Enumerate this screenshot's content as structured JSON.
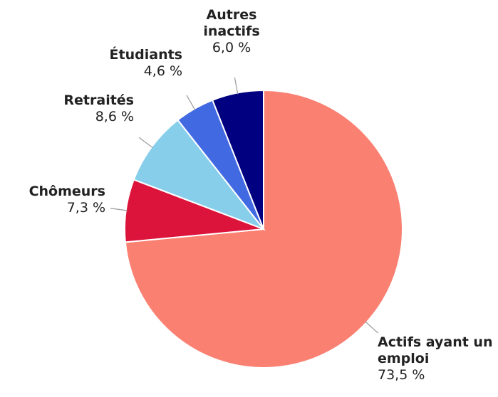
{
  "chart_data": {
    "type": "pie",
    "categories": [
      "Actifs ayant un emploi",
      "Chômeurs",
      "Retraités",
      "Étudiants",
      "Autres inactifs"
    ],
    "values": [
      73.5,
      7.3,
      8.6,
      4.6,
      6.0
    ],
    "value_labels": [
      "73,5 %",
      "7,3 %",
      "8,6 %",
      "4,6 %",
      "6,0 %"
    ],
    "colors": [
      "#fa8072",
      "#dc143c",
      "#87ceeb",
      "#4169e1",
      "#000080"
    ]
  }
}
